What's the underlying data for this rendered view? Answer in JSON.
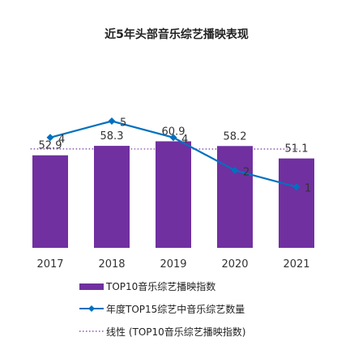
{
  "chart_data": {
    "type": "bar",
    "title": "近5年头部音乐综艺播映表现",
    "categories": [
      "2017",
      "2018",
      "2019",
      "2020",
      "2021"
    ],
    "series": [
      {
        "name": "TOP10音乐综艺播映指数",
        "type": "bar",
        "values": [
          52.9,
          58.3,
          60.9,
          58.2,
          51.1
        ],
        "labels": [
          "52.9",
          "58.3",
          "60.9",
          "58.2",
          "51.1"
        ],
        "color": "#7030A0"
      },
      {
        "name": "年度TOP15综艺中音乐综艺数量",
        "type": "line",
        "values": [
          4,
          5,
          4,
          2,
          1
        ],
        "labels": [
          "4",
          "5",
          "4",
          "2",
          "1"
        ],
        "color": "#0070C0"
      },
      {
        "name": "线性 (TOP10音乐综艺播映指数)",
        "type": "trendline",
        "values": [
          56.54,
          56.52,
          56.5,
          56.48,
          56.46
        ],
        "color": "#7030A0"
      }
    ],
    "xlabel": "",
    "ylabel": "",
    "bar_ylim": [
      0,
      70
    ],
    "line_ylim": [
      0,
      6
    ],
    "grid": false,
    "legend": "bottom"
  }
}
